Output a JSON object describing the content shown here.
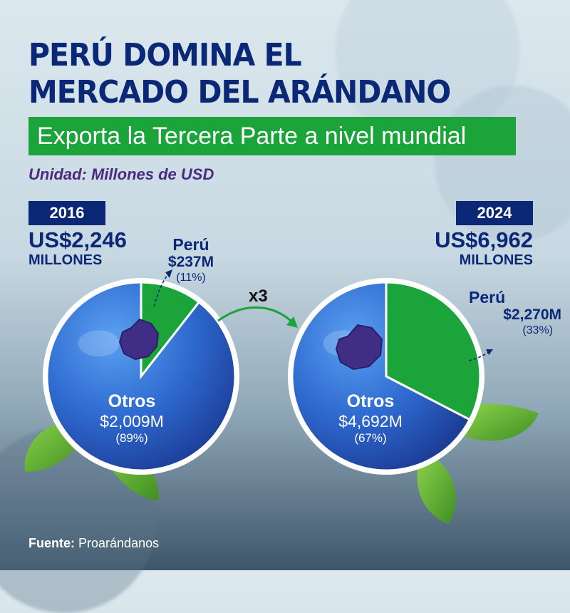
{
  "title_line1": "PERÚ DOMINA EL",
  "title_line2": "MERCADO DEL ARÁNDANO",
  "subtitle": "Exporta la Tercera Parte a nivel mundial",
  "unit": "Unidad: Millones de USD",
  "multiplier": "x3",
  "source_label": "Fuente:",
  "source_name": "Proarándanos",
  "colors": {
    "peru": "#1aa43a",
    "otros": "#2f6bd0",
    "title": "#0b2876",
    "subtitle_bg": "#1aa43a"
  },
  "chart_data": [
    {
      "type": "pie",
      "year": "2016",
      "total_text": "US$2,246",
      "total_unit": "MILLONES",
      "total": 2246,
      "slices": [
        {
          "name": "Perú",
          "value": 237,
          "value_label": "$237M",
          "percent": 11,
          "percent_label": "(11%)"
        },
        {
          "name": "Otros",
          "value": 2009,
          "value_label": "$2,009M",
          "percent": 89,
          "percent_label": "(89%)"
        }
      ]
    },
    {
      "type": "pie",
      "year": "2024",
      "total_text": "US$6,962",
      "total_unit": "MILLONES",
      "total": 6962,
      "slices": [
        {
          "name": "Perú",
          "value": 2270,
          "value_label": "$2,270M",
          "percent": 33,
          "percent_label": "(33%)"
        },
        {
          "name": "Otros",
          "value": 4692,
          "value_label": "$4,692M",
          "percent": 67,
          "percent_label": "(67%)"
        }
      ]
    }
  ]
}
